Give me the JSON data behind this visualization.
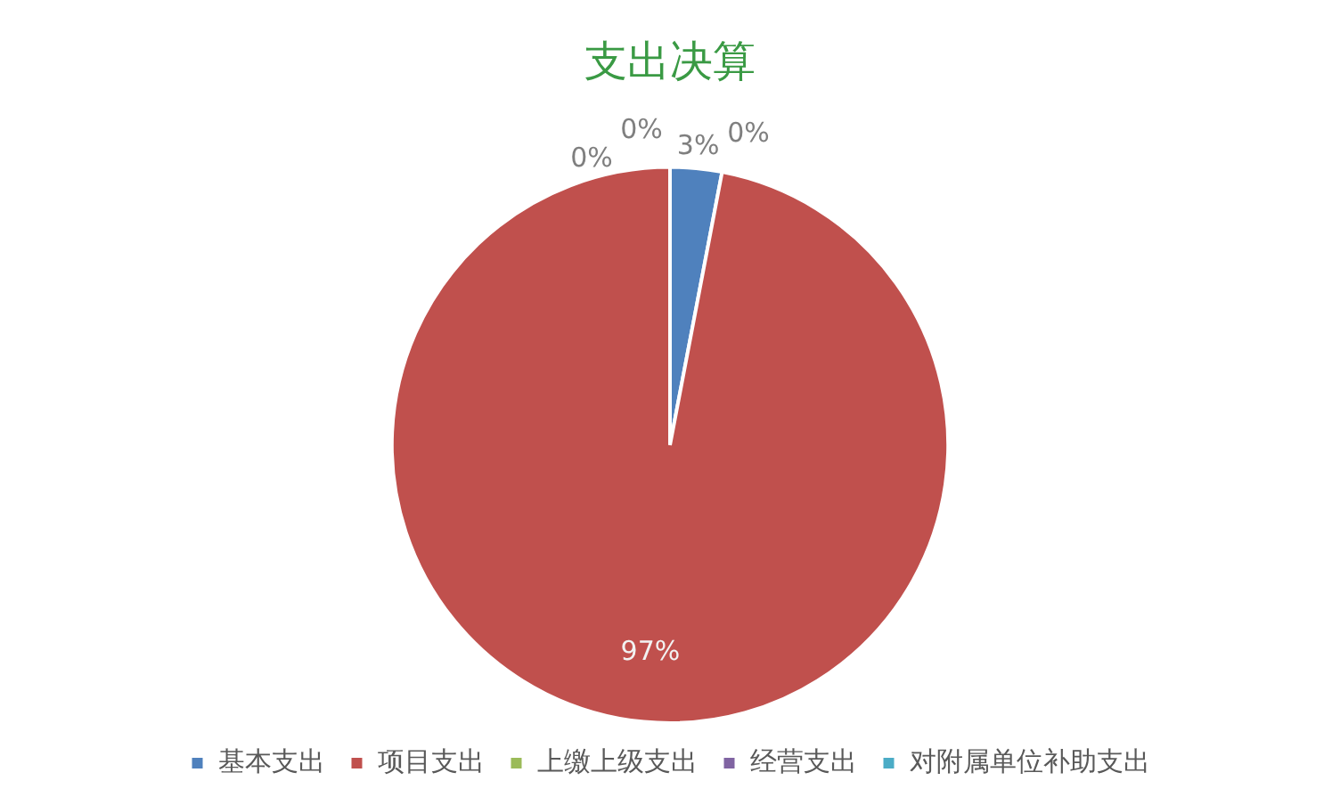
{
  "chart_data": {
    "type": "pie",
    "title": "支出决算",
    "categories": [
      "基本支出",
      "项目支出",
      "上缴上级支出",
      "经营支出",
      "对附属单位补助支出"
    ],
    "values": [
      3,
      97,
      0,
      0,
      0
    ],
    "colors": [
      "#4f81bd",
      "#c0504d",
      "#9bbb59",
      "#8064a2",
      "#4bacc6"
    ],
    "value_labels": [
      "3%",
      "97%",
      "0%",
      "0%",
      "0%"
    ],
    "legend": "bottom"
  }
}
